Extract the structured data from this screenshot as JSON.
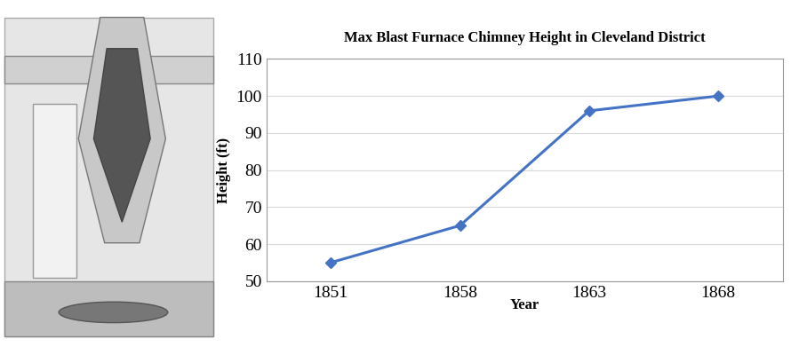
{
  "chart_data": {
    "type": "line",
    "title": "Max Blast Furnace Chimney Height in Cleveland District",
    "x_label": "Year",
    "y_label": "Height (ft)",
    "categories": [
      "1851",
      "1858",
      "1863",
      "1868"
    ],
    "values": [
      55,
      65,
      96,
      100
    ],
    "color": "#4472c4",
    "marker": "diamond",
    "line_style": "solid",
    "ylim": [
      50,
      110
    ],
    "yticks": [
      50,
      60,
      70,
      80,
      90,
      100,
      110
    ],
    "grid": true
  }
}
